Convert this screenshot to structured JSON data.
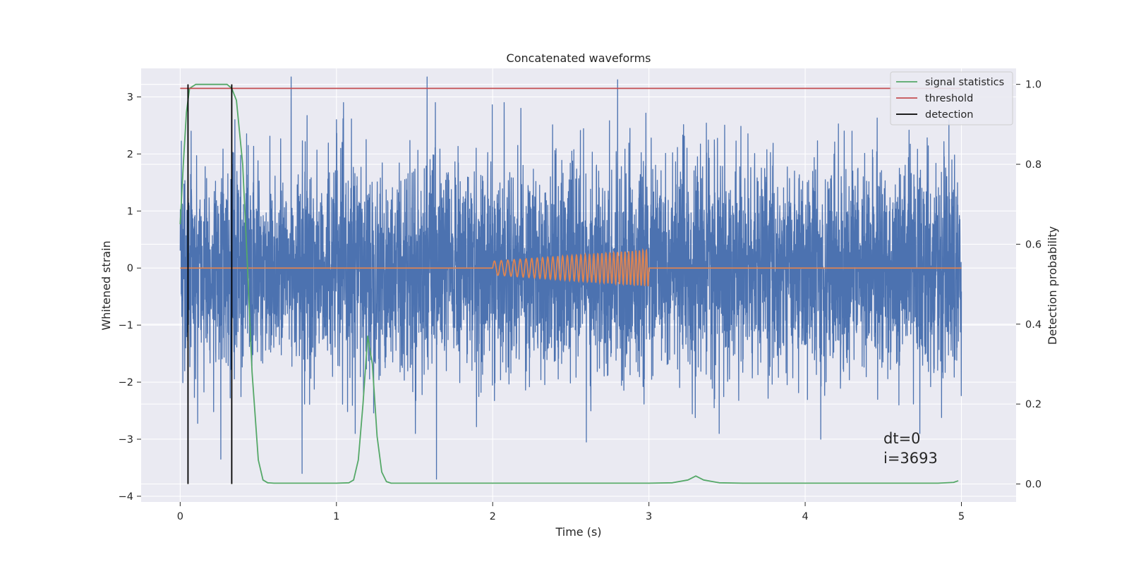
{
  "chart_data": {
    "type": "line",
    "title": "Concatenated waveforms",
    "xlabel": "Time (s)",
    "ylabel": "Whitened strain",
    "y2label": "Detection probability",
    "xlim": [
      -0.25,
      5.35
    ],
    "ylim": [
      -4.1,
      3.5
    ],
    "y2lim": [
      -0.045,
      1.04
    ],
    "xticks": [
      0,
      1,
      2,
      3,
      4,
      5
    ],
    "yticks": [
      -4,
      -3,
      -2,
      -1,
      0,
      1,
      2,
      3
    ],
    "y2ticks": [
      0.0,
      0.2,
      0.4,
      0.6,
      0.8,
      1.0
    ],
    "xtick_labels": [
      "0",
      "1",
      "2",
      "3",
      "4",
      "5"
    ],
    "ytick_labels": [
      "−4",
      "−3",
      "−2",
      "−1",
      "0",
      "1",
      "2",
      "3"
    ],
    "y2tick_labels": [
      "0.0",
      "0.2",
      "0.4",
      "0.6",
      "0.8",
      "1.0"
    ],
    "grid": true,
    "legend_position": "top-right",
    "colors": {
      "background": "#eaeaf2",
      "grid": "#ffffff",
      "strain": "#4c72b0",
      "injection": "#dd8452",
      "signal_statistics": "#55a868",
      "threshold": "#c44e52",
      "detection": "#000000"
    },
    "series": [
      {
        "name": "",
        "axis": "left",
        "kind": "noise",
        "x_range": [
          0,
          5
        ],
        "spread": 0.9,
        "peak_times": [
          0.07,
          0.35,
          0.71,
          1.0,
          1.58,
          2.18,
          2.8,
          3.45,
          4.3,
          4.92
        ],
        "peak_values": [
          2.4,
          2.6,
          3.35,
          2.6,
          3.35,
          2.8,
          3.3,
          2.4,
          2.4,
          2.6
        ],
        "trough_times": [
          0.26,
          0.78,
          1.12,
          1.64,
          2.6,
          3.45,
          4.1,
          4.6
        ],
        "trough_values": [
          -3.35,
          -3.6,
          -2.9,
          -3.7,
          -3.05,
          -2.9,
          -3.0,
          -2.4
        ]
      },
      {
        "name": "",
        "axis": "left",
        "kind": "injection",
        "x_range": [
          0,
          5
        ],
        "chirp_start": 2.0,
        "chirp_end": 3.0,
        "amp_start": 0.12,
        "amp_end": 0.32,
        "freq_start": 22,
        "freq_end": 46
      },
      {
        "name": "signal statistics",
        "axis": "right",
        "kind": "line",
        "x": [
          0.0,
          0.02,
          0.04,
          0.06,
          0.1,
          0.2,
          0.3,
          0.33,
          0.36,
          0.4,
          0.43,
          0.46,
          0.5,
          0.53,
          0.56,
          0.6,
          0.8,
          1.0,
          1.08,
          1.11,
          1.14,
          1.17,
          1.2,
          1.23,
          1.26,
          1.29,
          1.32,
          1.35,
          1.4,
          2.0,
          2.5,
          3.0,
          3.15,
          3.25,
          3.3,
          3.35,
          3.45,
          3.6,
          4.0,
          4.5,
          4.85,
          4.95,
          4.98
        ],
        "y": [
          0.65,
          0.8,
          0.93,
          0.99,
          1.0,
          1.0,
          1.0,
          0.99,
          0.96,
          0.8,
          0.55,
          0.28,
          0.06,
          0.01,
          0.003,
          0.002,
          0.002,
          0.002,
          0.003,
          0.01,
          0.06,
          0.2,
          0.37,
          0.3,
          0.12,
          0.03,
          0.006,
          0.002,
          0.002,
          0.002,
          0.002,
          0.002,
          0.003,
          0.01,
          0.02,
          0.01,
          0.003,
          0.002,
          0.002,
          0.002,
          0.002,
          0.004,
          0.008
        ]
      },
      {
        "name": "threshold",
        "axis": "right",
        "kind": "hline",
        "x": [
          0,
          5
        ],
        "y": [
          0.99,
          0.99
        ]
      },
      {
        "name": "detection",
        "axis": "right",
        "kind": "vlines",
        "x": [
          0.05,
          0.33
        ],
        "y": [
          0.0,
          1.0
        ]
      }
    ],
    "annotations": [
      "dt=0",
      "i=3693"
    ]
  }
}
